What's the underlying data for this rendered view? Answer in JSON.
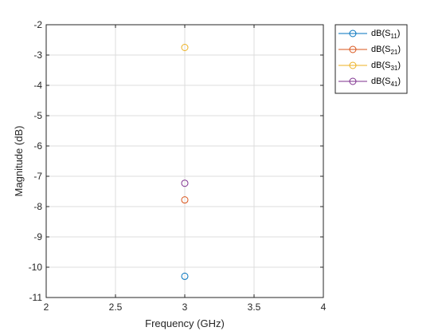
{
  "chart_data": {
    "type": "scatter",
    "title": "",
    "xlabel": "Frequency (GHz)",
    "ylabel": "Magnitude (dB)",
    "xlim": [
      2,
      4
    ],
    "ylim": [
      -11,
      -2
    ],
    "x_ticks": [
      2,
      2.5,
      3,
      3.5,
      4
    ],
    "x_tick_labels": [
      "2",
      "2.5",
      "3",
      "3.5",
      "4"
    ],
    "y_ticks": [
      -11,
      -10,
      -9,
      -8,
      -7,
      -6,
      -5,
      -4,
      -3,
      -2
    ],
    "y_tick_labels": [
      "-11",
      "-10",
      "-9",
      "-8",
      "-7",
      "-6",
      "-5",
      "-4",
      "-3",
      "-2"
    ],
    "grid": true,
    "legend_position": "outside top-right",
    "marker": "circle",
    "series": [
      {
        "name": "dB(S11)",
        "label_main": "dB(S",
        "label_sub": "11",
        "label_close": ")",
        "color": "#0072BD",
        "x": [
          3
        ],
        "y": [
          -10.3
        ]
      },
      {
        "name": "dB(S21)",
        "label_main": "dB(S",
        "label_sub": "21",
        "label_close": ")",
        "color": "#D95319",
        "x": [
          3
        ],
        "y": [
          -7.78
        ]
      },
      {
        "name": "dB(S31)",
        "label_main": "dB(S",
        "label_sub": "31",
        "label_close": ")",
        "color": "#EDB120",
        "x": [
          3
        ],
        "y": [
          -2.75
        ]
      },
      {
        "name": "dB(S41)",
        "label_main": "dB(S",
        "label_sub": "41",
        "label_close": ")",
        "color": "#7E2F8E",
        "x": [
          3
        ],
        "y": [
          -7.23
        ]
      }
    ]
  }
}
